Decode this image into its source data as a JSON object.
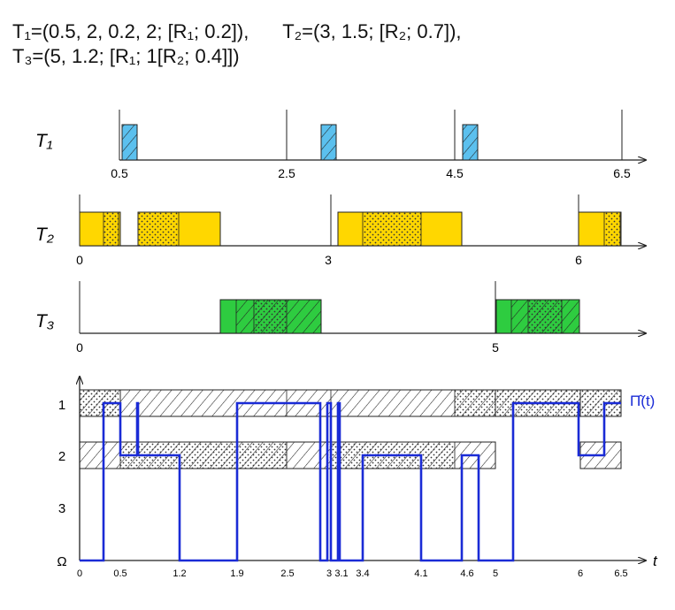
{
  "header": {
    "line1_a": "T₁=(0.5, 2, 0.2, 2;  [R₁; 0.2]),",
    "line1_b": "T₂=(3, 1.5;  [R₂; 0.7]),",
    "line2": "T₃=(5, 1.2;  [R₁;  1[R₂; 0.4]])"
  },
  "task_rows": [
    {
      "label": "T₁",
      "ticks": [
        "0.5",
        "2.5",
        "4.5",
        "6.5"
      ]
    },
    {
      "label": "T₂",
      "ticks": [
        "0",
        "3",
        "6"
      ]
    },
    {
      "label": "T₃",
      "ticks": [
        "0",
        "5"
      ]
    }
  ],
  "resource_chart": {
    "y_labels": [
      "1",
      "2",
      "3",
      "Ω"
    ],
    "x_axis_label": "t",
    "x_ticks": [
      "0",
      "0.5",
      "1.2",
      "1.9",
      "2.5",
      "3",
      "3.1",
      "3.4",
      "4.1",
      "4.6",
      "5",
      "6",
      "6.5"
    ],
    "curve_label": "Π̂(t)"
  },
  "colors": {
    "t1_blue": "#5bc0ee",
    "t2_yellow": "#ffd700",
    "t3_green": "#2ecc40",
    "pi_curve": "#1a2bd6",
    "stroke": "#222222"
  }
}
